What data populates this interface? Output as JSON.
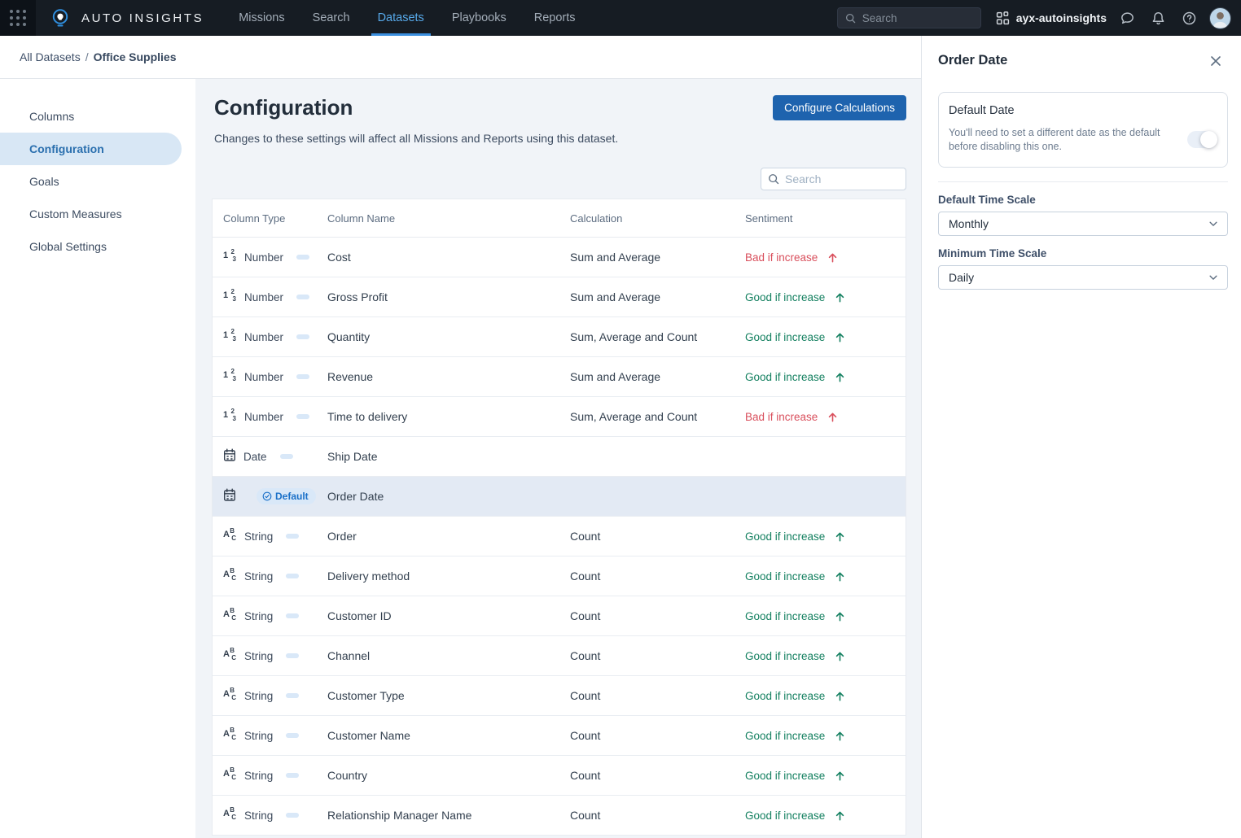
{
  "navbar": {
    "brand": "AUTO INSIGHTS",
    "items": [
      {
        "label": "Missions",
        "active": false
      },
      {
        "label": "Search",
        "active": false
      },
      {
        "label": "Datasets",
        "active": true
      },
      {
        "label": "Playbooks",
        "active": false
      },
      {
        "label": "Reports",
        "active": false
      }
    ],
    "search_placeholder": "Search",
    "org_name": "ayx-autoinsights"
  },
  "breadcrumb": {
    "parent": "All Datasets",
    "separator": "/",
    "current": "Office Supplies"
  },
  "sidebar": {
    "items": [
      {
        "label": "Columns",
        "active": false
      },
      {
        "label": "Configuration",
        "active": true
      },
      {
        "label": "Goals",
        "active": false
      },
      {
        "label": "Custom Measures",
        "active": false
      },
      {
        "label": "Global Settings",
        "active": false
      }
    ]
  },
  "main": {
    "title": "Configuration",
    "description": "Changes to these settings will affect all Missions and Reports using this dataset.",
    "configure_button": "Configure Calculations",
    "search_placeholder": "Search",
    "table": {
      "headers": [
        "Column Type",
        "Column Name",
        "Calculation",
        "Sentiment"
      ],
      "rows": [
        {
          "icon": "number-icon",
          "type": "Number",
          "name": "Cost",
          "calculation": "Sum and Average",
          "sentiment": "Bad if increase",
          "sentiment_kind": "bad",
          "selected": false
        },
        {
          "icon": "number-icon",
          "type": "Number",
          "name": "Gross Profit",
          "calculation": "Sum and Average",
          "sentiment": "Good if increase",
          "sentiment_kind": "good",
          "selected": false
        },
        {
          "icon": "number-icon",
          "type": "Number",
          "name": "Quantity",
          "calculation": "Sum, Average and Count",
          "sentiment": "Good if increase",
          "sentiment_kind": "good",
          "selected": false
        },
        {
          "icon": "number-icon",
          "type": "Number",
          "name": "Revenue",
          "calculation": "Sum and Average",
          "sentiment": "Good if increase",
          "sentiment_kind": "good",
          "selected": false
        },
        {
          "icon": "number-icon",
          "type": "Number",
          "name": "Time to delivery",
          "calculation": "Sum, Average and Count",
          "sentiment": "Bad if increase",
          "sentiment_kind": "bad",
          "selected": false
        },
        {
          "icon": "date-icon",
          "type": "Date",
          "name": "Ship Date",
          "calculation": "",
          "sentiment": "",
          "sentiment_kind": "",
          "selected": false
        },
        {
          "icon": "date-icon",
          "type": "",
          "badge": "Default",
          "name": "Order Date",
          "calculation": "",
          "sentiment": "",
          "sentiment_kind": "",
          "selected": true
        },
        {
          "icon": "string-icon",
          "type": "String",
          "name": "Order",
          "calculation": "Count",
          "sentiment": "Good if increase",
          "sentiment_kind": "good",
          "selected": false
        },
        {
          "icon": "string-icon",
          "type": "String",
          "name": "Delivery method",
          "calculation": "Count",
          "sentiment": "Good if increase",
          "sentiment_kind": "good",
          "selected": false
        },
        {
          "icon": "string-icon",
          "type": "String",
          "name": "Customer ID",
          "calculation": "Count",
          "sentiment": "Good if increase",
          "sentiment_kind": "good",
          "selected": false
        },
        {
          "icon": "string-icon",
          "type": "String",
          "name": "Channel",
          "calculation": "Count",
          "sentiment": "Good if increase",
          "sentiment_kind": "good",
          "selected": false
        },
        {
          "icon": "string-icon",
          "type": "String",
          "name": "Customer Type",
          "calculation": "Count",
          "sentiment": "Good if increase",
          "sentiment_kind": "good",
          "selected": false
        },
        {
          "icon": "string-icon",
          "type": "String",
          "name": "Customer Name",
          "calculation": "Count",
          "sentiment": "Good if increase",
          "sentiment_kind": "good",
          "selected": false
        },
        {
          "icon": "string-icon",
          "type": "String",
          "name": "Country",
          "calculation": "Count",
          "sentiment": "Good if increase",
          "sentiment_kind": "good",
          "selected": false
        },
        {
          "icon": "string-icon",
          "type": "String",
          "name": "Relationship Manager Name",
          "calculation": "Count",
          "sentiment": "Good if increase",
          "sentiment_kind": "good",
          "selected": false
        }
      ]
    }
  },
  "panel": {
    "title": "Order Date",
    "default_date": {
      "title": "Default Date",
      "description": "You'll need to set a different date as the default before disabling this one.",
      "toggle_on": true
    },
    "default_time_scale": {
      "label": "Default Time Scale",
      "value": "Monthly"
    },
    "minimum_time_scale": {
      "label": "Minimum Time Scale",
      "value": "Daily"
    }
  },
  "colors": {
    "navbar_bg": "#161c23",
    "nav_active": "#57a9ea",
    "accent_blue": "#1e63ae",
    "sidebar_active_bg": "#d8e7f5",
    "selected_row_bg": "#e3eaf4",
    "badge_blue": "#1a70c8",
    "sentiment_good": "#148060",
    "sentiment_bad": "#d94f5c",
    "main_bg": "#f1f4f8"
  }
}
